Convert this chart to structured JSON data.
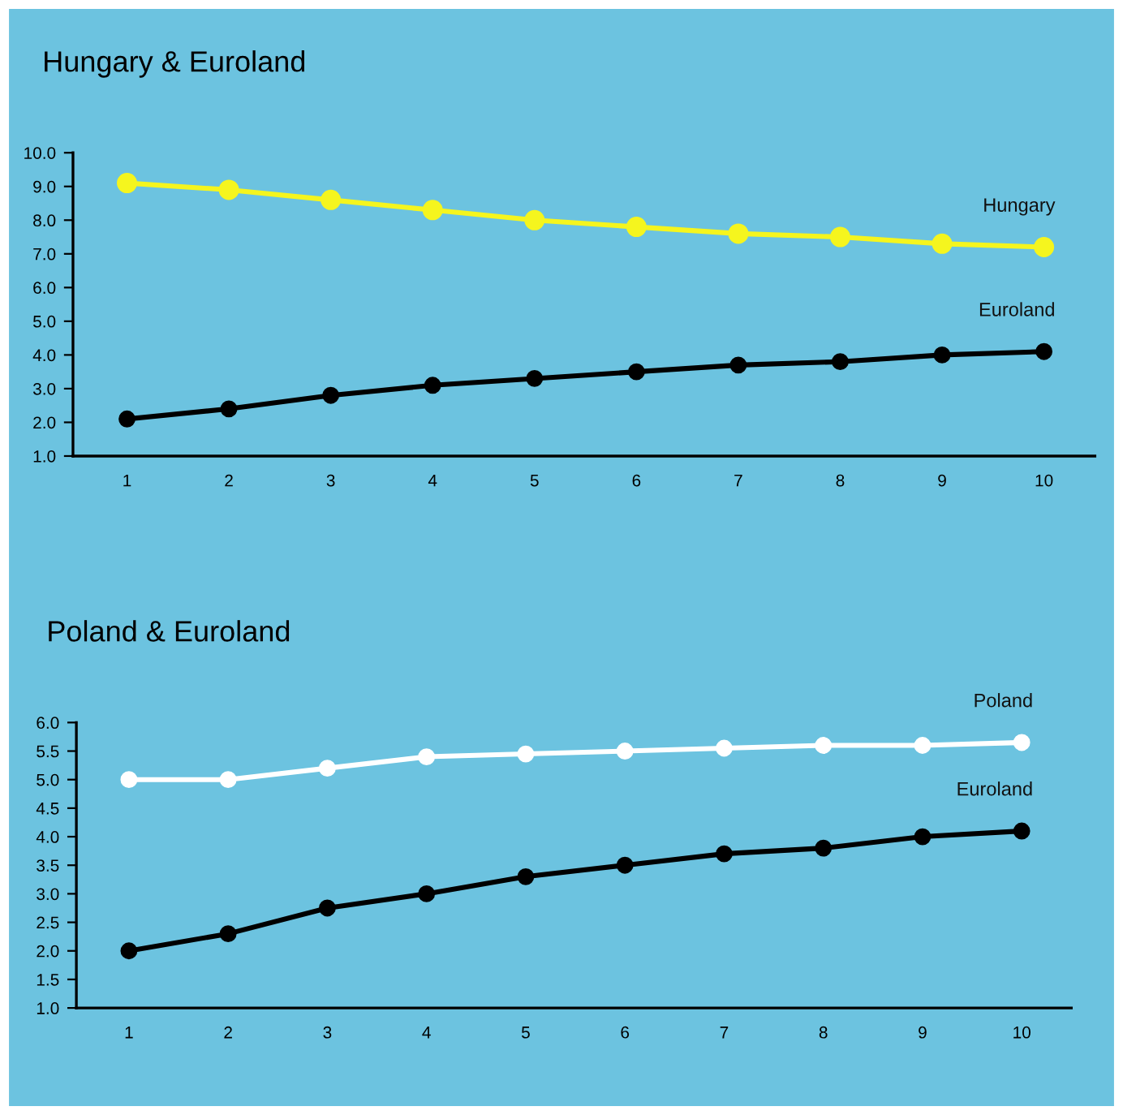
{
  "chart_data": [
    {
      "type": "line",
      "title": "Hungary & Euroland",
      "categories": [
        "1",
        "2",
        "3",
        "4",
        "5",
        "6",
        "7",
        "8",
        "9",
        "10"
      ],
      "ylim": [
        1.0,
        10.0
      ],
      "yticks": [
        {
          "value": 1,
          "label": "1.0"
        },
        {
          "value": 2,
          "label": "2.0"
        },
        {
          "value": 3,
          "label": "3.0"
        },
        {
          "value": 4,
          "label": "4.0"
        },
        {
          "value": 5,
          "label": "5.0"
        },
        {
          "value": 6,
          "label": "6.0"
        },
        {
          "value": 7,
          "label": "7.0"
        },
        {
          "value": 8,
          "label": "8.0"
        },
        {
          "value": 9,
          "label": "9.0"
        },
        {
          "value": 10,
          "label": "10.0"
        }
      ],
      "grid": false,
      "legend": false,
      "marker": "circle",
      "line_style": "solid",
      "series": [
        {
          "name": "Hungary",
          "color": "#f5f51e",
          "values": [
            9.1,
            8.9,
            8.6,
            8.3,
            8.0,
            7.8,
            7.6,
            7.5,
            7.3,
            7.2
          ]
        },
        {
          "name": "Euroland",
          "color": "#000000",
          "values": [
            2.1,
            2.4,
            2.8,
            3.1,
            3.3,
            3.5,
            3.7,
            3.8,
            4.0,
            4.1
          ]
        }
      ]
    },
    {
      "type": "line",
      "title": "Poland & Euroland",
      "categories": [
        "1",
        "2",
        "3",
        "4",
        "5",
        "6",
        "7",
        "8",
        "9",
        "10"
      ],
      "ylim": [
        1.0,
        6.0
      ],
      "yticks": [
        {
          "value": 1,
          "label": "1.0"
        },
        {
          "value": 1.5,
          "label": "1.5"
        },
        {
          "value": 2,
          "label": "2.0"
        },
        {
          "value": 2.5,
          "label": "2.5"
        },
        {
          "value": 3,
          "label": "3.0"
        },
        {
          "value": 3.5,
          "label": "3.5"
        },
        {
          "value": 4,
          "label": "4.0"
        },
        {
          "value": 4.5,
          "label": "4.5"
        },
        {
          "value": 5,
          "label": "5.0"
        },
        {
          "value": 5.5,
          "label": "5.5"
        },
        {
          "value": 6,
          "label": "6.0"
        }
      ],
      "grid": false,
      "legend": false,
      "marker": "circle",
      "line_style": "solid",
      "series": [
        {
          "name": "Poland",
          "color": "#ffffff",
          "values": [
            5.0,
            5.0,
            5.2,
            5.4,
            5.45,
            5.5,
            5.55,
            5.6,
            5.6,
            5.65
          ]
        },
        {
          "name": "Euroland",
          "color": "#000000",
          "values": [
            2.0,
            2.3,
            2.75,
            3.0,
            3.3,
            3.5,
            3.7,
            3.8,
            4.0,
            4.1
          ]
        }
      ]
    }
  ]
}
